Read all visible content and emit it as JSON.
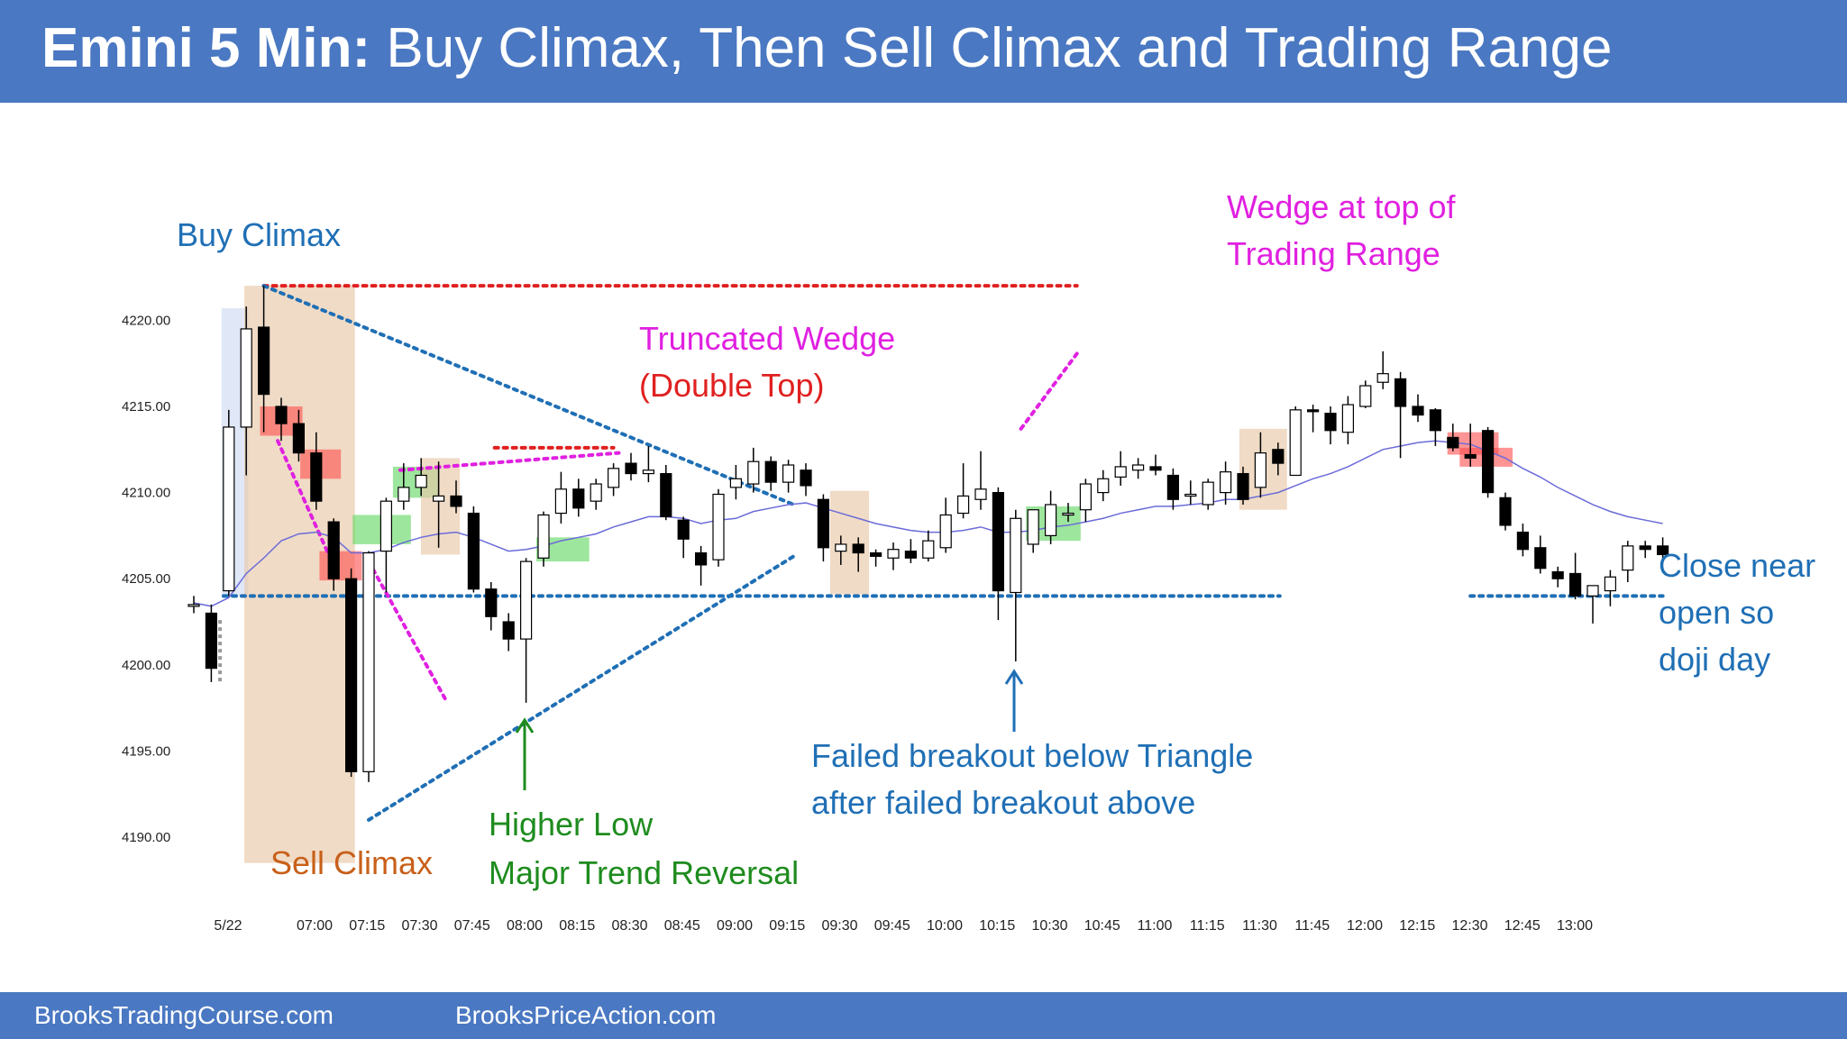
{
  "header": {
    "title_bold": "Emini 5 Min:",
    "title_rest": " Buy Climax, Then Sell Climax and Trading Range"
  },
  "footer": {
    "left": "BrooksTradingCourse.com",
    "right": "BrooksPriceAction.com"
  },
  "colors": {
    "banner": "#4a78c2",
    "annotation_blue": "#1f6fb5",
    "annotation_magenta": "#e020e0",
    "annotation_red": "#e02020",
    "annotation_green": "#1e8c1e",
    "annotation_orange": "#c8601a",
    "ema": "#6b6bd9",
    "bull_shade": "#5cd65c",
    "bear_shade": "#ff4d4d",
    "neutral_shade": "#e8c8a8"
  },
  "annotations": {
    "buy_climax": "Buy Climax",
    "sell_climax": "Sell Climax",
    "truncated_wedge_1": "Truncated Wedge",
    "truncated_wedge_2": "(Double Top)",
    "wedge_top_1": "Wedge at top of",
    "wedge_top_2": "Trading Range",
    "higher_low_1": "Higher Low",
    "higher_low_2": "Major Trend Reversal",
    "failed_breakout_1": "Failed breakout below Triangle",
    "failed_breakout_2": "after failed breakout above",
    "close_1": "Close near",
    "close_2": "open so",
    "close_3": "doji day"
  },
  "chart_data": {
    "type": "candlestick",
    "title": "Emini 5 Min",
    "ylim": [
      4188,
      4222
    ],
    "y_ticks": [
      "4190.00",
      "4195.00",
      "4200.00",
      "4205.00",
      "4210.00",
      "4215.00",
      "4220.00"
    ],
    "x_ticks": [
      "5/22",
      "07:00",
      "07:15",
      "07:30",
      "07:45",
      "08:00",
      "08:15",
      "08:30",
      "08:45",
      "09:00",
      "09:15",
      "09:30",
      "09:45",
      "10:00",
      "10:15",
      "10:30",
      "10:45",
      "11:00",
      "11:15",
      "11:30",
      "11:45",
      "12:00",
      "12:15",
      "12:30",
      "12:45",
      "13:00"
    ],
    "candles": [
      {
        "o": 4203.5,
        "h": 4204.0,
        "l": 4203.0,
        "c": 4203.5
      },
      {
        "o": 4203.0,
        "h": 4203.5,
        "l": 4199.0,
        "c": 4199.8
      },
      {
        "o": 4204.3,
        "h": 4214.8,
        "l": 4204.0,
        "c": 4213.8
      },
      {
        "o": 4213.8,
        "h": 4220.8,
        "l": 4211.0,
        "c": 4219.5
      },
      {
        "o": 4219.6,
        "h": 4222.0,
        "l": 4213.5,
        "c": 4215.7
      },
      {
        "o": 4215.0,
        "h": 4215.5,
        "l": 4213.0,
        "c": 4214.0
      },
      {
        "o": 4214.0,
        "h": 4214.8,
        "l": 4211.8,
        "c": 4212.3
      },
      {
        "o": 4212.3,
        "h": 4213.5,
        "l": 4209.0,
        "c": 4209.5
      },
      {
        "o": 4208.3,
        "h": 4208.5,
        "l": 4204.3,
        "c": 4205.0
      },
      {
        "o": 4205.0,
        "h": 4205.6,
        "l": 4193.5,
        "c": 4193.8
      },
      {
        "o": 4193.8,
        "h": 4206.6,
        "l": 4193.2,
        "c": 4206.5
      },
      {
        "o": 4206.6,
        "h": 4209.7,
        "l": 4204.2,
        "c": 4209.5
      },
      {
        "o": 4209.5,
        "h": 4211.7,
        "l": 4209.0,
        "c": 4210.3
      },
      {
        "o": 4210.3,
        "h": 4212.0,
        "l": 4209.8,
        "c": 4211.0
      },
      {
        "o": 4209.5,
        "h": 4211.8,
        "l": 4206.8,
        "c": 4209.8
      },
      {
        "o": 4209.8,
        "h": 4210.7,
        "l": 4208.8,
        "c": 4209.2
      },
      {
        "o": 4208.8,
        "h": 4209.2,
        "l": 4204.2,
        "c": 4204.4
      },
      {
        "o": 4204.4,
        "h": 4204.8,
        "l": 4202.0,
        "c": 4202.8
      },
      {
        "o": 4202.5,
        "h": 4203.0,
        "l": 4200.8,
        "c": 4201.5
      },
      {
        "o": 4201.5,
        "h": 4206.2,
        "l": 4197.8,
        "c": 4206.0
      },
      {
        "o": 4206.2,
        "h": 4208.9,
        "l": 4205.7,
        "c": 4208.7
      },
      {
        "o": 4208.8,
        "h": 4211.2,
        "l": 4208.2,
        "c": 4210.2
      },
      {
        "o": 4210.2,
        "h": 4210.8,
        "l": 4208.6,
        "c": 4209.1
      },
      {
        "o": 4209.5,
        "h": 4210.8,
        "l": 4209.0,
        "c": 4210.5
      },
      {
        "o": 4210.3,
        "h": 4211.7,
        "l": 4209.8,
        "c": 4211.4
      },
      {
        "o": 4211.7,
        "h": 4212.3,
        "l": 4210.7,
        "c": 4211.1
      },
      {
        "o": 4211.1,
        "h": 4212.7,
        "l": 4210.6,
        "c": 4211.3
      },
      {
        "o": 4211.1,
        "h": 4211.6,
        "l": 4208.4,
        "c": 4208.6
      },
      {
        "o": 4208.4,
        "h": 4208.6,
        "l": 4206.2,
        "c": 4207.3
      },
      {
        "o": 4206.5,
        "h": 4206.9,
        "l": 4204.6,
        "c": 4205.8
      },
      {
        "o": 4206.1,
        "h": 4210.2,
        "l": 4205.7,
        "c": 4209.9
      },
      {
        "o": 4210.3,
        "h": 4211.6,
        "l": 4209.6,
        "c": 4210.8
      },
      {
        "o": 4210.5,
        "h": 4212.6,
        "l": 4210.0,
        "c": 4211.8
      },
      {
        "o": 4211.8,
        "h": 4212.1,
        "l": 4210.1,
        "c": 4210.6
      },
      {
        "o": 4210.6,
        "h": 4211.9,
        "l": 4210.0,
        "c": 4211.6
      },
      {
        "o": 4211.3,
        "h": 4211.7,
        "l": 4209.8,
        "c": 4210.4
      },
      {
        "o": 4209.6,
        "h": 4209.9,
        "l": 4206.0,
        "c": 4206.8
      },
      {
        "o": 4206.6,
        "h": 4207.5,
        "l": 4205.8,
        "c": 4207.0
      },
      {
        "o": 4207.0,
        "h": 4207.4,
        "l": 4205.4,
        "c": 4206.5
      },
      {
        "o": 4206.5,
        "h": 4206.7,
        "l": 4205.7,
        "c": 4206.3
      },
      {
        "o": 4206.2,
        "h": 4207.1,
        "l": 4205.5,
        "c": 4206.7
      },
      {
        "o": 4206.6,
        "h": 4207.3,
        "l": 4205.9,
        "c": 4206.2
      },
      {
        "o": 4206.2,
        "h": 4207.8,
        "l": 4206.0,
        "c": 4207.2
      },
      {
        "o": 4206.8,
        "h": 4209.7,
        "l": 4206.5,
        "c": 4208.7
      },
      {
        "o": 4208.8,
        "h": 4211.7,
        "l": 4208.5,
        "c": 4209.8
      },
      {
        "o": 4209.6,
        "h": 4212.4,
        "l": 4209.0,
        "c": 4210.2
      },
      {
        "o": 4210.0,
        "h": 4210.3,
        "l": 4202.6,
        "c": 4204.3
      },
      {
        "o": 4204.2,
        "h": 4209.0,
        "l": 4200.2,
        "c": 4208.5
      },
      {
        "o": 4207.0,
        "h": 4208.8,
        "l": 4206.5,
        "c": 4209.0
      },
      {
        "o": 4207.5,
        "h": 4210.1,
        "l": 4207.0,
        "c": 4209.3
      },
      {
        "o": 4208.7,
        "h": 4209.4,
        "l": 4208.3,
        "c": 4208.8
      },
      {
        "o": 4209.0,
        "h": 4210.8,
        "l": 4208.3,
        "c": 4210.5
      },
      {
        "o": 4210.0,
        "h": 4211.3,
        "l": 4209.5,
        "c": 4210.8
      },
      {
        "o": 4210.9,
        "h": 4212.4,
        "l": 4210.4,
        "c": 4211.5
      },
      {
        "o": 4211.3,
        "h": 4212.0,
        "l": 4210.8,
        "c": 4211.6
      },
      {
        "o": 4211.5,
        "h": 4212.2,
        "l": 4211.0,
        "c": 4211.3
      },
      {
        "o": 4211.0,
        "h": 4211.4,
        "l": 4209.0,
        "c": 4209.6
      },
      {
        "o": 4209.8,
        "h": 4210.7,
        "l": 4209.3,
        "c": 4209.9
      },
      {
        "o": 4209.3,
        "h": 4210.8,
        "l": 4209.0,
        "c": 4210.6
      },
      {
        "o": 4210.0,
        "h": 4211.8,
        "l": 4209.3,
        "c": 4211.2
      },
      {
        "o": 4211.1,
        "h": 4211.5,
        "l": 4209.3,
        "c": 4209.6
      },
      {
        "o": 4210.3,
        "h": 4213.5,
        "l": 4209.7,
        "c": 4212.3
      },
      {
        "o": 4212.5,
        "h": 4212.9,
        "l": 4211.0,
        "c": 4211.7
      },
      {
        "o": 4211.0,
        "h": 4215.0,
        "l": 4211.0,
        "c": 4214.8
      },
      {
        "o": 4214.8,
        "h": 4215.1,
        "l": 4213.5,
        "c": 4214.7
      },
      {
        "o": 4214.6,
        "h": 4215.0,
        "l": 4212.8,
        "c": 4213.6
      },
      {
        "o": 4213.5,
        "h": 4215.6,
        "l": 4212.8,
        "c": 4215.1
      },
      {
        "o": 4215.0,
        "h": 4216.5,
        "l": 4214.9,
        "c": 4216.2
      },
      {
        "o": 4216.4,
        "h": 4218.2,
        "l": 4216.0,
        "c": 4216.9
      },
      {
        "o": 4216.6,
        "h": 4217.0,
        "l": 4212.0,
        "c": 4215.0
      },
      {
        "o": 4215.0,
        "h": 4215.7,
        "l": 4214.1,
        "c": 4214.5
      },
      {
        "o": 4214.8,
        "h": 4214.9,
        "l": 4212.7,
        "c": 4213.6
      },
      {
        "o": 4213.2,
        "h": 4214.0,
        "l": 4212.4,
        "c": 4212.6
      },
      {
        "o": 4212.2,
        "h": 4214.0,
        "l": 4211.5,
        "c": 4212.0
      },
      {
        "o": 4213.6,
        "h": 4213.8,
        "l": 4209.7,
        "c": 4210.0
      },
      {
        "o": 4209.7,
        "h": 4210.0,
        "l": 4207.8,
        "c": 4208.1
      },
      {
        "o": 4207.7,
        "h": 4208.2,
        "l": 4206.3,
        "c": 4206.7
      },
      {
        "o": 4206.8,
        "h": 4207.5,
        "l": 4205.3,
        "c": 4205.6
      },
      {
        "o": 4205.4,
        "h": 4205.7,
        "l": 4204.5,
        "c": 4205.0
      },
      {
        "o": 4205.3,
        "h": 4206.5,
        "l": 4203.8,
        "c": 4204.0
      },
      {
        "o": 4204.0,
        "h": 4204.6,
        "l": 4202.4,
        "c": 4204.6
      },
      {
        "o": 4204.3,
        "h": 4205.5,
        "l": 4203.4,
        "c": 4205.1
      },
      {
        "o": 4205.5,
        "h": 4207.2,
        "l": 4204.8,
        "c": 4206.9
      },
      {
        "o": 4206.9,
        "h": 4207.2,
        "l": 4206.2,
        "c": 4206.7
      },
      {
        "o": 4206.9,
        "h": 4207.4,
        "l": 4206.0,
        "c": 4206.4
      }
    ],
    "ema": [
      4203.6,
      4203.4,
      4203.9,
      4205.3,
      4206.2,
      4207.2,
      4207.6,
      4207.7,
      4207.4,
      4206.5,
      4206.5,
      4206.7,
      4207.1,
      4207.4,
      4207.6,
      4207.7,
      4207.4,
      4207.0,
      4206.6,
      4206.7,
      4206.9,
      4207.2,
      4207.4,
      4207.6,
      4208.0,
      4208.3,
      4208.6,
      4208.6,
      4208.5,
      4208.2,
      4208.4,
      4208.5,
      4208.9,
      4209.1,
      4209.3,
      4209.4,
      4209.1,
      4208.8,
      4208.5,
      4208.2,
      4208.0,
      4207.8,
      4207.7,
      4207.7,
      4207.8,
      4208.0,
      4207.7,
      4207.7,
      4207.8,
      4208.0,
      4208.1,
      4208.3,
      4208.5,
      4208.8,
      4209.0,
      4209.2,
      4209.2,
      4209.3,
      4209.4,
      4209.6,
      4209.6,
      4209.8,
      4210.0,
      4210.4,
      4210.8,
      4211.1,
      4211.5,
      4212.0,
      4212.5,
      4212.7,
      4212.9,
      4213.0,
      4212.9,
      4212.8,
      4212.4,
      4212.0,
      4211.4,
      4210.9,
      4210.3,
      4209.8,
      4209.3,
      4208.9,
      4208.6,
      4208.4,
      4208.2
    ],
    "levels": {
      "high_of_day": 4222.0,
      "open": 4204.0,
      "truncated_wedge_top": 4212.6
    }
  }
}
